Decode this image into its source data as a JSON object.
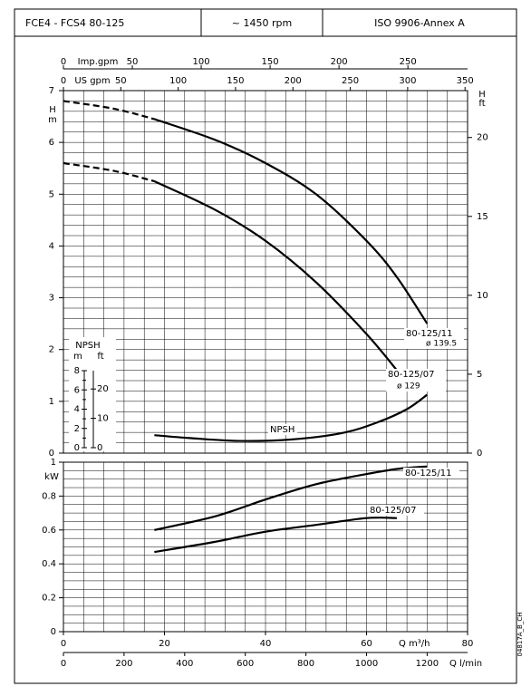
{
  "header": {
    "model": "FCE4 - FCS4   80-125",
    "speed": "~ 1450 rpm",
    "standard": "ISO 9906-Annex A"
  },
  "code": "04817A_B_CH",
  "chart_data": [
    {
      "type": "line",
      "ylabel": "H",
      "yunit": "m",
      "ylim": [
        0,
        7
      ],
      "yticks": [
        0,
        1,
        2,
        3,
        4,
        5,
        6,
        7
      ],
      "y2label": "H",
      "y2unit": "ft",
      "y2lim": [
        0,
        22.97
      ],
      "y2ticks": [
        0,
        5,
        10,
        15,
        20
      ],
      "xlim": [
        0,
        80
      ],
      "top_axes": [
        {
          "label": "Imp.gpm",
          "lim": [
            0,
            293.3
          ],
          "ticks": [
            0,
            50,
            100,
            150,
            200,
            250
          ]
        },
        {
          "label": "US gpm",
          "lim": [
            0,
            352.2
          ],
          "ticks": [
            0,
            50,
            100,
            150,
            200,
            250,
            300,
            350
          ]
        }
      ],
      "grid_step_x": 4,
      "grid_step_y": 0.2,
      "series": [
        {
          "name": "80-125/11",
          "note": "ø 139.5",
          "color": "#000000",
          "segments": [
            {
              "style": "dashed",
              "x": [
                0,
                10,
                18
              ],
              "values": [
                6.8,
                6.65,
                6.45
              ]
            },
            {
              "style": "solid",
              "x": [
                18,
                30,
                40,
                50,
                60,
                66,
                72
              ],
              "values": [
                6.45,
                6.05,
                5.6,
                5.0,
                4.1,
                3.4,
                2.5
              ]
            }
          ]
        },
        {
          "name": "80-125/07",
          "note": "ø 129",
          "color": "#000000",
          "segments": [
            {
              "style": "dashed",
              "x": [
                0,
                10,
                18
              ],
              "values": [
                5.6,
                5.45,
                5.25
              ]
            },
            {
              "style": "solid",
              "x": [
                18,
                30,
                40,
                50,
                60,
                66
              ],
              "values": [
                5.25,
                4.7,
                4.1,
                3.3,
                2.3,
                1.6
              ]
            }
          ]
        }
      ],
      "npsh": {
        "label": "NPSH",
        "yunit": "m",
        "y2unit": "ft",
        "ylim": [
          0,
          8
        ],
        "yticks": [
          0,
          2,
          4,
          6,
          8
        ],
        "y_minor_ticks": [
          1,
          3,
          5,
          7
        ],
        "y2lim": [
          0,
          26.25
        ],
        "y2ticks": [
          0,
          10,
          20
        ],
        "series": {
          "name": "NPSH",
          "color": "#000000",
          "x": [
            18,
            25,
            35,
            45,
            55,
            62,
            68,
            72
          ],
          "values": [
            1.3,
            1.0,
            0.7,
            0.85,
            1.5,
            2.6,
            4.0,
            5.5
          ]
        }
      }
    },
    {
      "type": "line",
      "ylabel": "kW",
      "ylim": [
        0,
        1
      ],
      "yticks": [
        0,
        0.2,
        0.4,
        0.6,
        0.8,
        1
      ],
      "xlabel": "Q  m³/h",
      "xlim": [
        0,
        80
      ],
      "xticks": [
        0,
        20,
        40,
        60,
        80
      ],
      "x2label": "Q  l/min",
      "x2lim": [
        0,
        1333.3
      ],
      "x2ticks": [
        0,
        200,
        400,
        600,
        800,
        1000,
        1200
      ],
      "grid_step_x": 4,
      "grid_step_y": 0.05,
      "series": [
        {
          "name": "80-125/11",
          "color": "#000000",
          "x": [
            18,
            30,
            40,
            50,
            60,
            66,
            72
          ],
          "values": [
            0.6,
            0.68,
            0.78,
            0.87,
            0.93,
            0.96,
            0.975
          ]
        },
        {
          "name": "80-125/07",
          "color": "#000000",
          "x": [
            18,
            30,
            40,
            50,
            60,
            66
          ],
          "values": [
            0.47,
            0.53,
            0.59,
            0.63,
            0.67,
            0.67
          ]
        }
      ]
    }
  ]
}
